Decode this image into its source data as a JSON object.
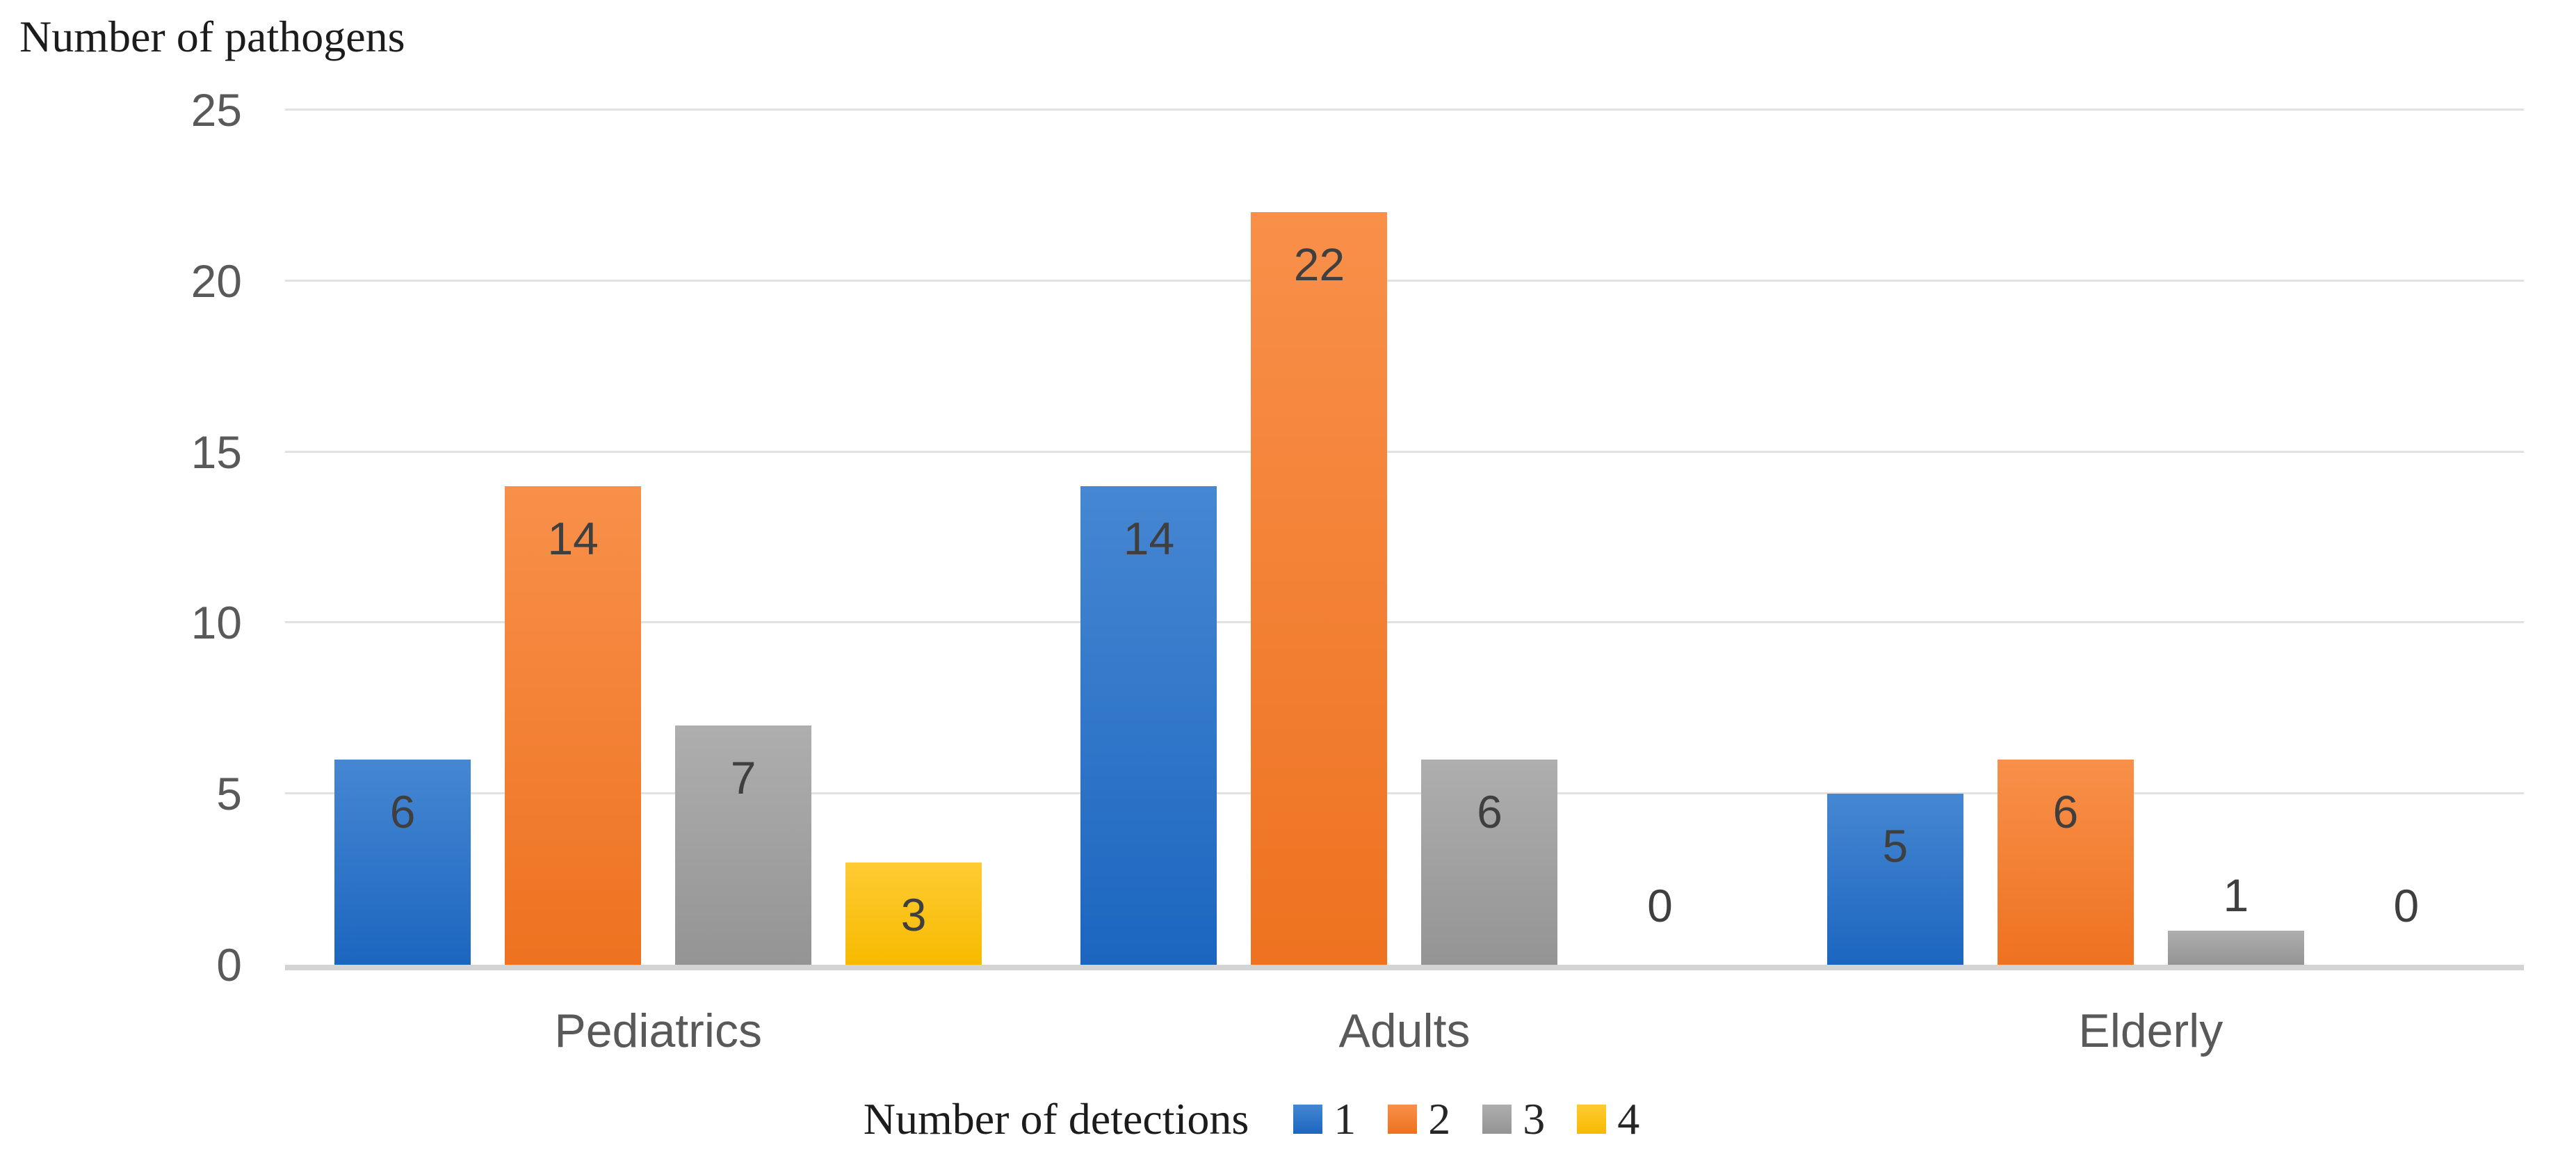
{
  "chart_data": {
    "type": "bar",
    "title": "",
    "xlabel": "",
    "ylabel": "Number of pathogens",
    "legend_title": "Number of detections",
    "legend_position": "bottom",
    "grid": true,
    "categories": [
      "Pediatrics",
      "Adults",
      "Elderly"
    ],
    "series": [
      {
        "name": "1",
        "color": "#1c66c0",
        "color_light": "#4687d2",
        "values": [
          6,
          14,
          5
        ]
      },
      {
        "name": "2",
        "color": "#ee7220",
        "color_light": "#f8904a",
        "values": [
          14,
          22,
          6
        ]
      },
      {
        "name": "3",
        "color": "#949494",
        "color_light": "#aeaeae",
        "values": [
          7,
          6,
          1
        ]
      },
      {
        "name": "4",
        "color": "#f7ba00",
        "color_light": "#fecb33",
        "values": [
          3,
          0,
          0
        ]
      }
    ],
    "yticks": [
      0,
      5,
      10,
      15,
      20,
      25
    ],
    "ylim": [
      0,
      25
    ],
    "data_labels": [
      {
        "category": "Pediatrics",
        "values": [
          6,
          14,
          7,
          3
        ]
      },
      {
        "category": "Adults",
        "values": [
          14,
          22,
          6,
          0
        ]
      },
      {
        "category": "Elderly",
        "values": [
          5,
          6,
          1,
          0
        ]
      }
    ]
  }
}
